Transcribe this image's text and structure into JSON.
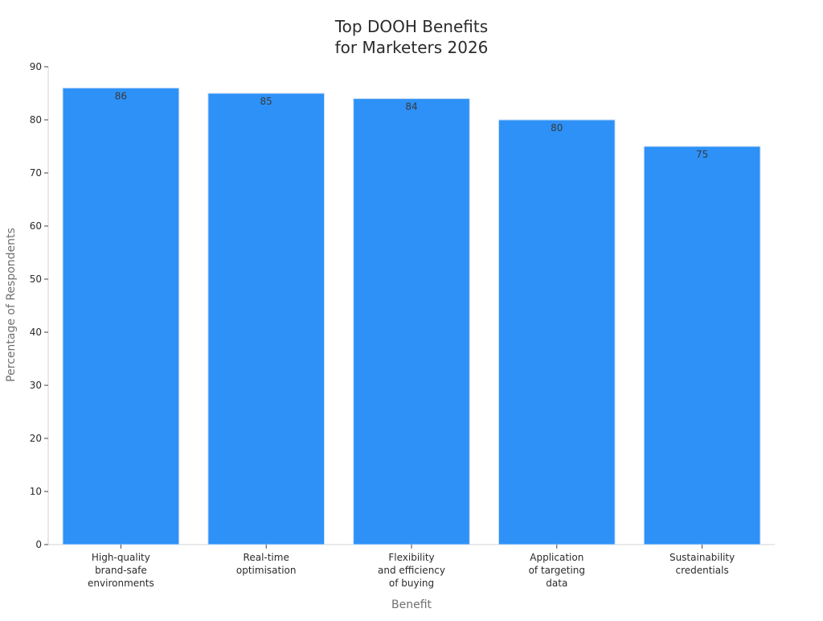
{
  "chart_data": {
    "type": "bar",
    "title_lines": [
      "Top DOOH Benefits",
      "for Marketers 2026"
    ],
    "xlabel": "Benefit",
    "ylabel": "Percentage of Respondents",
    "categories": [
      [
        "High-quality",
        "brand-safe",
        "environments"
      ],
      [
        "Real-time",
        "optimisation"
      ],
      [
        "Flexibility",
        "and efficiency",
        "of buying"
      ],
      [
        "Application",
        "of targeting",
        "data"
      ],
      [
        "Sustainability",
        "credentials"
      ]
    ],
    "values": [
      86,
      85,
      84,
      80,
      75
    ],
    "data_labels": [
      "86",
      "85",
      "84",
      "80",
      "75"
    ],
    "ylim": [
      0,
      90
    ],
    "yticks": [
      0,
      10,
      20,
      30,
      40,
      50,
      60,
      70,
      80,
      90
    ],
    "grid": false,
    "legend": "none",
    "colors": {
      "bar": "#2d91f7",
      "bar_edge": "#c9def5",
      "axis": "#d3d3d3",
      "tick": "#444444"
    }
  }
}
